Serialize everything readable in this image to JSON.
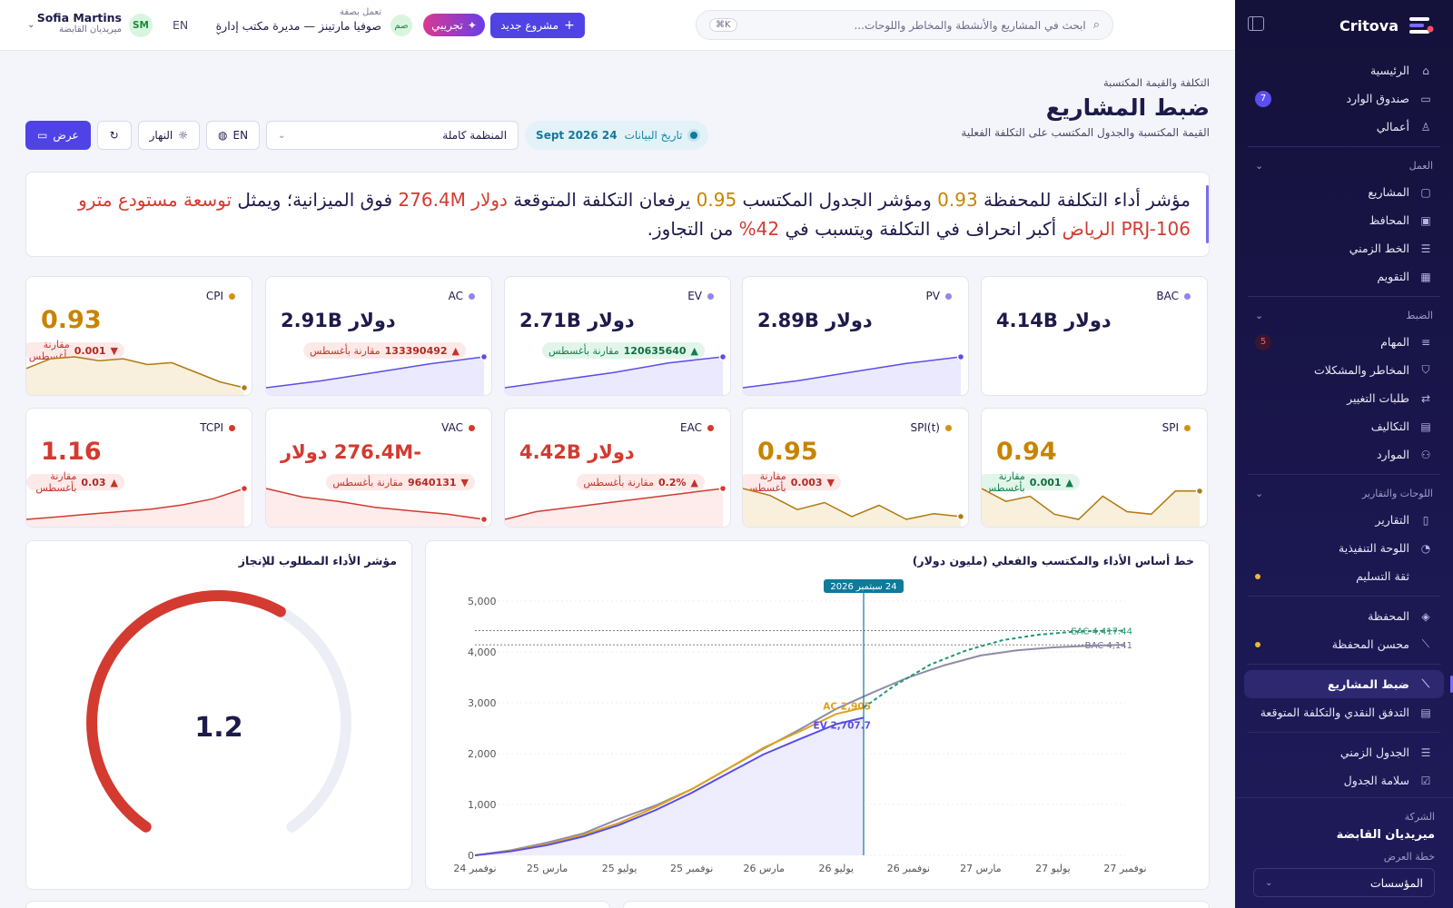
{
  "brand": {
    "name": "Critova"
  },
  "nav": {
    "top": [
      {
        "label": "الرئيسية",
        "icon": "home-icon",
        "glyph": "⌂"
      },
      {
        "label": "صندوق الوارد",
        "icon": "inbox-icon",
        "glyph": "▭",
        "badge": "7"
      },
      {
        "label": "أعمالي",
        "icon": "user-icon",
        "glyph": "♙"
      }
    ],
    "groups": [
      {
        "label": "العمل",
        "items": [
          {
            "label": "المشاريع",
            "icon": "folder-icon",
            "glyph": "▢"
          },
          {
            "label": "المحافظ",
            "icon": "briefcase-icon",
            "glyph": "▣"
          },
          {
            "label": "الخط الزمني",
            "icon": "timeline-icon",
            "glyph": "☰"
          },
          {
            "label": "التقويم",
            "icon": "calendar-icon",
            "glyph": "▦"
          }
        ]
      },
      {
        "label": "الضبط",
        "items": [
          {
            "label": "المهام",
            "icon": "tasks-icon",
            "glyph": "≡",
            "badge": "5"
          },
          {
            "label": "المخاطر والمشكلات",
            "icon": "shield-icon",
            "glyph": "⛉"
          },
          {
            "label": "طلبات التغيير",
            "icon": "swap-icon",
            "glyph": "⇄"
          },
          {
            "label": "التكاليف",
            "icon": "money-icon",
            "glyph": "▤"
          },
          {
            "label": "الموارد",
            "icon": "people-icon",
            "glyph": "⚇"
          }
        ]
      },
      {
        "label": "اللوحات والتقارير",
        "items": [
          {
            "label": "التقارير",
            "icon": "report-icon",
            "glyph": "▯"
          },
          {
            "label": "اللوحة التنفيذية",
            "icon": "gauge-icon",
            "glyph": "◔"
          },
          {
            "label": "ثقة التسليم",
            "icon": "confidence-icon",
            "glyph": "",
            "dot": true
          }
        ]
      }
    ],
    "portfolio": [
      {
        "label": "المحفظة",
        "icon": "layers-icon",
        "glyph": "◈"
      },
      {
        "label": "محسن المحفظة",
        "icon": "chart-line-icon",
        "glyph": "⟋",
        "dot": true
      }
    ],
    "control": [
      {
        "label": "ضبط المشاريع",
        "icon": "chart-line-icon",
        "glyph": "⟋",
        "active": true
      },
      {
        "label": "التدفق النقدي والتكلفة المتوقعة",
        "icon": "cash-icon",
        "glyph": "▤"
      }
    ],
    "schedule": [
      {
        "label": "الجدول الزمني",
        "icon": "gantt-icon",
        "glyph": "☰"
      },
      {
        "label": "سلامة الجدول",
        "icon": "check-square-icon",
        "glyph": "☑"
      }
    ]
  },
  "company": {
    "label": "الشركة",
    "name": "ميريديان القابضة",
    "plan_label": "خطة العرض",
    "plan_value": "المؤسسات"
  },
  "topbar": {
    "search_placeholder": "ابحث في المشاريع والأنشطة والمخاطر واللوحات...",
    "kbd": "K⌘",
    "new_project": "مشروع جديد",
    "trial": "تجريبي",
    "mini_avatar": "صم",
    "acting_label": "تعمل بصفة",
    "acting_value": "صوفيا مارتينز — مديرة مكتب إدارة",
    "lang": "EN",
    "user_initials": "SM",
    "user_name": "Sofia Martins",
    "user_org": "ميريديان القابضة"
  },
  "page": {
    "breadcrumb": "التكلفة والقيمة المكتسبة",
    "title": "ضبط المشاريع",
    "subtitle": "القيمة المكتسبة والجدول المكتسب على التكلفة الفعلية"
  },
  "controls": {
    "date_label": "تاريخ البيانات",
    "date_value": "24 Sept 2026",
    "scope": "المنظمة كاملة",
    "lang": "EN",
    "theme": "النهار",
    "present": "عرض"
  },
  "insight": {
    "t1": "مؤشر أداء التكلفة للمحفظة ",
    "cpi": "0.93",
    "t2": " ومؤشر الجدول المكتسب ",
    "spi": "0.95",
    "t3": " يرفعان التكلفة المتوقعة ",
    "overrun": "دولار 276.4M",
    "t4": " فوق الميزانية؛ ويمثل ",
    "project": "توسعة مستودع مترو PRJ-106 الرياض",
    "t5": " أكبر انحراف في التكلفة ويتسبب في ",
    "share": "42%",
    "t6": " من التجاوز."
  },
  "kpis": [
    {
      "label": "BAC",
      "value": "دولار 4.14B",
      "color": "#1d1b4a",
      "dot": "#8f86ee",
      "spark": null
    },
    {
      "label": "PV",
      "value": "دولار 2.89B",
      "color": "#1d1b4a",
      "dot": "#8f86ee",
      "spark": {
        "pts": [
          2.0,
          2.2,
          2.45,
          2.7,
          2.89
        ],
        "line": "#5a4ee6",
        "fill": "#ebe9fd"
      }
    },
    {
      "label": "EV",
      "value": "دولار 2.71B",
      "color": "#1d1b4a",
      "dot": "#8f86ee",
      "delta": "120635640",
      "arrow": "▲",
      "delta_suffix": "مقارنة بأغسطس",
      "tone": "green",
      "spark": {
        "pts": [
          1.9,
          2.1,
          2.3,
          2.55,
          2.71
        ],
        "line": "#5a4ee6",
        "fill": "#ebe9fd"
      }
    },
    {
      "label": "AC",
      "value": "دولار 2.91B",
      "color": "#1d1b4a",
      "dot": "#8f86ee",
      "delta": "133390492",
      "arrow": "▲",
      "delta_suffix": "مقارنة بأغسطس",
      "tone": "red",
      "spark": {
        "pts": [
          2.0,
          2.2,
          2.45,
          2.7,
          2.91
        ],
        "line": "#5a4ee6",
        "fill": "#ebe9fd"
      }
    },
    {
      "label": "CPI",
      "value": "0.93",
      "big": true,
      "color": "#c78400",
      "dot": "#d39214",
      "delta": "0.001",
      "arrow": "▼",
      "delta_suffix": "مقارنة بأغسطس",
      "tone": "red",
      "spark": {
        "pts": [
          0.94,
          0.945,
          0.946,
          0.944,
          0.945,
          0.942,
          0.943,
          0.938,
          0.933,
          0.93
        ],
        "line": "#b07a10",
        "fill": "#f8efdc"
      }
    },
    {
      "label": "SPI",
      "value": "0.94",
      "big": true,
      "color": "#c78400",
      "dot": "#d39214",
      "delta": "0.001",
      "arrow": "▲",
      "delta_suffix": "مقارنة بأغسطس",
      "tone": "green",
      "spark": {
        "pts": [
          0.945,
          0.94,
          0.942,
          0.935,
          0.933,
          0.942,
          0.936,
          0.935,
          0.944,
          0.944
        ],
        "line": "#b07a10",
        "fill": "#f8efdc"
      }
    },
    {
      "label": "SPI(t)",
      "value": "0.95",
      "big": true,
      "color": "#c78400",
      "dot": "#d39214",
      "delta": "0.003",
      "arrow": "▼",
      "delta_suffix": "مقارنة بأغسطس",
      "tone": "red",
      "spark": {
        "pts": [
          0.97,
          0.965,
          0.955,
          0.96,
          0.95,
          0.958,
          0.948,
          0.952,
          0.95
        ],
        "line": "#b07a10",
        "fill": "#f8efdc"
      }
    },
    {
      "label": "EAC",
      "value": "دولار 4.42B",
      "color": "#d33a30",
      "dot": "#d33a30",
      "delta": "0.2%",
      "arrow": "▲",
      "delta_suffix": "مقارنة بأغسطس",
      "tone": "red",
      "spark": {
        "pts": [
          4.38,
          4.39,
          4.395,
          4.4,
          4.405,
          4.41,
          4.415,
          4.42
        ],
        "line": "#d33a30",
        "fill": "#fdeceb"
      }
    },
    {
      "label": "VAC",
      "value": "-276.4M دولار",
      "color": "#d33a30",
      "dot": "#d33a30",
      "delta": "9640131",
      "arrow": "▼",
      "delta_suffix": "مقارنة بأغسطس",
      "tone": "red",
      "spark": {
        "pts": [
          -240,
          -250,
          -255,
          -262,
          -266,
          -270,
          -276
        ],
        "line": "#d33a30",
        "fill": "#fdeceb"
      }
    },
    {
      "label": "TCPI",
      "value": "1.16",
      "big": true,
      "color": "#d33a30",
      "dot": "#d33a30",
      "delta": "0.03",
      "arrow": "▲",
      "delta_suffix": "مقارنة بأغسطس",
      "tone": "red",
      "spark": {
        "pts": [
          1.1,
          1.105,
          1.11,
          1.115,
          1.12,
          1.128,
          1.14,
          1.16
        ],
        "line": "#d33a30",
        "fill": "#fdeceb"
      }
    }
  ],
  "main_chart": {
    "title": "خط أساس الأداء والمكتسب والفعلي (مليون دولار)"
  },
  "gauge": {
    "title": "مؤشر الأداء المطلوب للإنجاز",
    "value": "1.2",
    "fraction": 0.6
  },
  "chart_data": {
    "type": "line",
    "title": "خط أساس الأداء والمكتسب والفعلي (مليون دولار)",
    "x": [
      "نوفمبر 24",
      "مارس 25",
      "يوليو 25",
      "نوفمبر 25",
      "مارس 26",
      "يوليو 26",
      "نوفمبر 26",
      "مارس 27",
      "يوليو 27",
      "نوفمبر 27"
    ],
    "ylim": [
      0,
      5000
    ],
    "yticks": [
      0,
      1000,
      2000,
      3000,
      4000,
      5000
    ],
    "series": [
      {
        "name": "PV",
        "color": "#8e8ca8",
        "style": "solid",
        "x": [
          0,
          0.5,
          1,
          1.5,
          2,
          2.5,
          3,
          3.5,
          4,
          4.5,
          5,
          5.5,
          6,
          6.5,
          7,
          7.5,
          8,
          8.5,
          9
        ],
        "values": [
          0,
          100,
          250,
          430,
          720,
          980,
          1300,
          1700,
          2100,
          2480,
          2880,
          3200,
          3500,
          3740,
          3930,
          4030,
          4090,
          4120,
          4141
        ]
      },
      {
        "name": "AC",
        "label": "AC 2,905",
        "color": "#e0a21c",
        "style": "solid",
        "x": [
          0,
          0.5,
          1,
          1.5,
          2,
          2.5,
          3,
          3.5,
          4,
          4.5,
          5,
          5.38
        ],
        "values": [
          0,
          90,
          220,
          400,
          640,
          950,
          1300,
          1700,
          2120,
          2440,
          2780,
          2905
        ]
      },
      {
        "name": "EV",
        "label": "EV 2,707.7",
        "color": "#5a4ee6",
        "style": "solid",
        "x": [
          0,
          0.5,
          1,
          1.5,
          2,
          2.5,
          3,
          3.5,
          4,
          4.5,
          5,
          5.38
        ],
        "values": [
          0,
          80,
          200,
          370,
          600,
          890,
          1230,
          1610,
          1990,
          2290,
          2580,
          2707.7
        ]
      },
      {
        "name": "EAC",
        "color": "#1f9a6a",
        "style": "dashed",
        "x": [
          5.38,
          5.8,
          6.3,
          6.8,
          7.3,
          7.8,
          8.3,
          8.8,
          9
        ],
        "values": [
          2905,
          3330,
          3750,
          4030,
          4230,
          4340,
          4400,
          4417,
          4417
        ]
      }
    ],
    "reference_lines": [
      {
        "value": 4417,
        "label": "EAC 4,417.44"
      },
      {
        "value": 4141,
        "label": "BAC 4,141"
      }
    ],
    "marker": {
      "x": 5.38,
      "label": "24 سبتمبر 2026"
    }
  }
}
